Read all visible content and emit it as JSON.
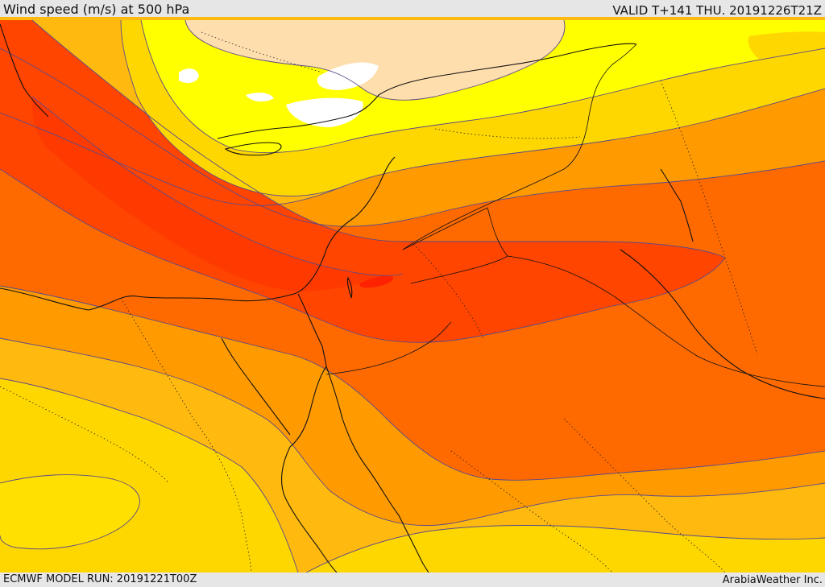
{
  "header": {
    "title": "Wind speed (m/s) at 500 hPa",
    "valid": "VALID T+141 THU. 20191226T21Z"
  },
  "footer": {
    "model_run": "ECMWF MODEL RUN: 20191221T00Z",
    "credit": "ArabiaWeather Inc."
  },
  "map": {
    "field": "wind-speed",
    "level": "500 hPa",
    "palette": {
      "calm": "#ffffff",
      "light": "#ffdead",
      "yellow": "#ffff00",
      "gold": "#ffd700",
      "amber": "#ffb90f",
      "orange": "#ff9a00",
      "dark_orange": "#ff6a00",
      "red_orange": "#ff4500",
      "core": "#ff3000"
    },
    "contour_color": "#5a4a8a",
    "coast_color": "#111111",
    "grid": false
  }
}
